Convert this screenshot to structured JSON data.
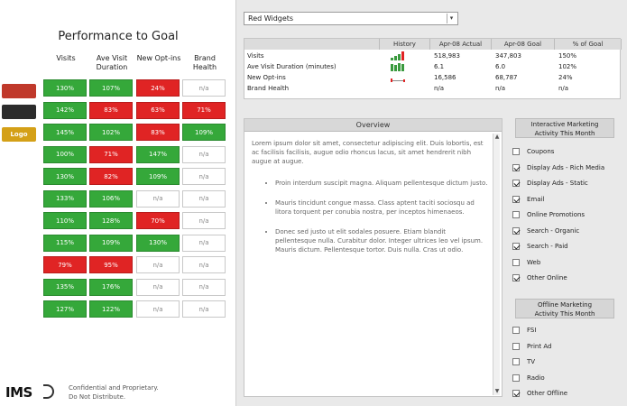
{
  "left": {
    "title": "Performance to Goal",
    "headers": [
      "Visits",
      "Ave Visit Duration",
      "New Opt-ins",
      "Brand Health"
    ],
    "logos": [
      {
        "label": "",
        "color": "#c0392b"
      },
      {
        "label": "",
        "color": "#2c2c2c"
      },
      {
        "label": "Logo",
        "color": "#d4a017"
      }
    ],
    "rows": [
      [
        {
          "v": "130%",
          "s": "green"
        },
        {
          "v": "107%",
          "s": "green"
        },
        {
          "v": "24%",
          "s": "red"
        },
        {
          "v": "n/a",
          "s": "empty"
        }
      ],
      [
        {
          "v": "142%",
          "s": "green"
        },
        {
          "v": "83%",
          "s": "red"
        },
        {
          "v": "63%",
          "s": "red"
        },
        {
          "v": "71%",
          "s": "red"
        }
      ],
      [
        {
          "v": "145%",
          "s": "green"
        },
        {
          "v": "102%",
          "s": "green"
        },
        {
          "v": "83%",
          "s": "red"
        },
        {
          "v": "109%",
          "s": "green"
        }
      ],
      [
        {
          "v": "100%",
          "s": "green"
        },
        {
          "v": "71%",
          "s": "red"
        },
        {
          "v": "147%",
          "s": "green"
        },
        {
          "v": "n/a",
          "s": "empty"
        }
      ],
      [
        {
          "v": "130%",
          "s": "green"
        },
        {
          "v": "82%",
          "s": "red"
        },
        {
          "v": "109%",
          "s": "green"
        },
        {
          "v": "n/a",
          "s": "empty"
        }
      ],
      [
        {
          "v": "133%",
          "s": "green"
        },
        {
          "v": "106%",
          "s": "green"
        },
        {
          "v": "n/a",
          "s": "empty"
        },
        {
          "v": "n/a",
          "s": "empty"
        }
      ],
      [
        {
          "v": "110%",
          "s": "green"
        },
        {
          "v": "128%",
          "s": "green"
        },
        {
          "v": "70%",
          "s": "red"
        },
        {
          "v": "n/a",
          "s": "empty"
        }
      ],
      [
        {
          "v": "115%",
          "s": "green"
        },
        {
          "v": "109%",
          "s": "green"
        },
        {
          "v": "130%",
          "s": "green"
        },
        {
          "v": "n/a",
          "s": "empty"
        }
      ],
      [
        {
          "v": "79%",
          "s": "red"
        },
        {
          "v": "95%",
          "s": "red"
        },
        {
          "v": "n/a",
          "s": "empty"
        },
        {
          "v": "n/a",
          "s": "empty"
        }
      ],
      [
        {
          "v": "135%",
          "s": "green"
        },
        {
          "v": "176%",
          "s": "green"
        },
        {
          "v": "n/a",
          "s": "empty"
        },
        {
          "v": "n/a",
          "s": "empty"
        }
      ],
      [
        {
          "v": "127%",
          "s": "green"
        },
        {
          "v": "122%",
          "s": "green"
        },
        {
          "v": "n/a",
          "s": "empty"
        },
        {
          "v": "n/a",
          "s": "empty"
        }
      ]
    ],
    "footer": {
      "logo": "IMS",
      "line1": "Confidential and Proprietary.",
      "line2": "Do Not Distribute."
    }
  },
  "right": {
    "selector": {
      "value": "Red Widgets",
      "arrow": "▾"
    },
    "metrics": {
      "headers": [
        "",
        "History",
        "Apr-08 Actual",
        "Apr-08 Goal",
        "% of Goal"
      ],
      "rows": [
        {
          "label": "Visits",
          "spark": "bars-up",
          "actual": "518,983",
          "goal": "347,803",
          "pct": "150%"
        },
        {
          "label": "Ave Visit Duration (minutes)",
          "spark": "bars-flat",
          "actual": "6.1",
          "goal": "6.0",
          "pct": "102%"
        },
        {
          "label": "New Opt-ins",
          "spark": "line-low",
          "actual": "16,586",
          "goal": "68,787",
          "pct": "24%"
        },
        {
          "label": "Brand Health",
          "spark": "",
          "actual": "n/a",
          "goal": "n/a",
          "pct": "n/a"
        }
      ]
    },
    "overview": {
      "title": "Overview",
      "intro": "Lorem ipsum dolor sit amet, consectetur adipiscing elit. Duis lobortis, est ac facilisis facilisis, augue odio rhoncus lacus, sit amet hendrerit nibh augue at augue.",
      "bullets": [
        "Proin interdum suscipit magna. Aliquam pellentesque dictum justo.",
        "Mauris tincidunt congue massa. Class aptent taciti sociosqu ad litora torquent per conubia nostra, per inceptos himenaeos.",
        "Donec sed justo ut elit sodales posuere. Etiam blandit pellentesque nulla. Curabitur dolor. Integer ultrices leo vel ipsum. Mauris dictum. Pellentesque tortor. Duis nulla. Cras ut odio."
      ]
    },
    "interactive": {
      "title_line1": "Interactive Marketing",
      "title_line2": "Activity This Month",
      "items": [
        {
          "label": "Coupons",
          "checked": false
        },
        {
          "label": "Display Ads - Rich Media",
          "checked": true
        },
        {
          "label": "Display Ads - Static",
          "checked": true
        },
        {
          "label": "Email",
          "checked": true
        },
        {
          "label": "Online Promotions",
          "checked": false
        },
        {
          "label": "Search - Organic",
          "checked": true
        },
        {
          "label": "Search - Paid",
          "checked": true
        },
        {
          "label": "Web",
          "checked": false
        },
        {
          "label": "Other Online",
          "checked": true
        }
      ]
    },
    "offline": {
      "title_line1": "Offline Marketing",
      "title_line2": "Activity This Month",
      "items": [
        {
          "label": "FSI",
          "checked": false
        },
        {
          "label": "Print Ad",
          "checked": false
        },
        {
          "label": "TV",
          "checked": false
        },
        {
          "label": "Radio",
          "checked": false
        },
        {
          "label": "Other Offline",
          "checked": true
        }
      ]
    },
    "scroll": {
      "up": "▲",
      "down": "▼"
    }
  }
}
